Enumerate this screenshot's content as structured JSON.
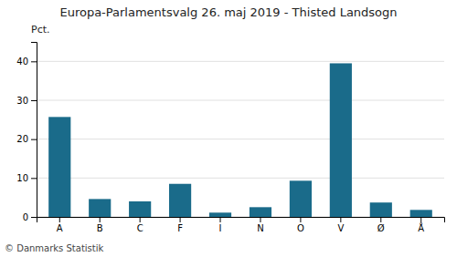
{
  "chart_data": {
    "type": "bar",
    "title": "Europa-Parlamentsvalg 26. maj 2019 - Thisted Landsogn",
    "categories": [
      "A",
      "B",
      "C",
      "F",
      "I",
      "N",
      "O",
      "V",
      "Ø",
      "Å"
    ],
    "values": [
      25.7,
      4.6,
      4.0,
      8.5,
      1.1,
      2.5,
      9.3,
      39.5,
      3.7,
      1.8
    ],
    "color": "#1a6b8a",
    "ylabel": "Pct.",
    "ylim": [
      0,
      45
    ],
    "yticks": [
      0,
      10,
      20,
      30,
      40
    ],
    "grid": true,
    "annotations": [
      "© Danmarks Statistik"
    ]
  }
}
